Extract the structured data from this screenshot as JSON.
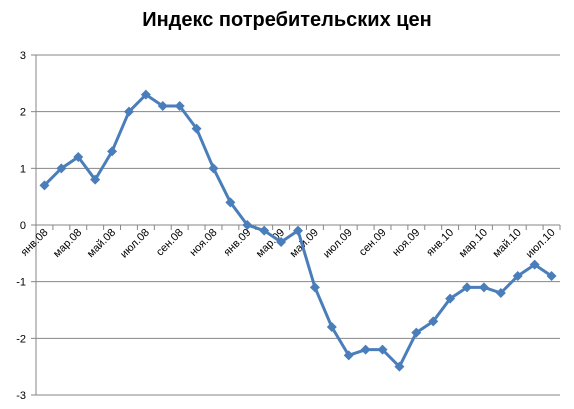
{
  "chart_data": {
    "type": "line",
    "title": "Индекс потребительских цен",
    "categories": [
      "янв.08",
      null,
      "мар.08",
      null,
      "май.08",
      null,
      "июл.08",
      null,
      "сен.08",
      null,
      "ноя.08",
      null,
      "янв.09",
      null,
      "мар.09",
      null,
      "май.09",
      null,
      "июл.09",
      null,
      "сен.09",
      null,
      "ноя.09",
      null,
      "янв.10",
      null,
      "мар.10",
      null,
      "май.10",
      null,
      "июл.10"
    ],
    "values": [
      0.7,
      1.0,
      1.2,
      0.8,
      1.3,
      2.0,
      2.3,
      2.1,
      2.1,
      1.7,
      1.0,
      0.4,
      0.0,
      -0.1,
      -0.3,
      -0.1,
      -1.1,
      -1.8,
      -2.3,
      -2.2,
      -2.2,
      -2.5,
      -1.9,
      -1.7,
      -1.3,
      -1.1,
      -1.1,
      -1.2,
      -0.9,
      -0.7,
      -0.9
    ],
    "color": "#4a7ebb",
    "ylim": [
      -3,
      3
    ],
    "yticks": [
      -3,
      -2,
      -1,
      0,
      1,
      2,
      3
    ],
    "grid": true
  }
}
